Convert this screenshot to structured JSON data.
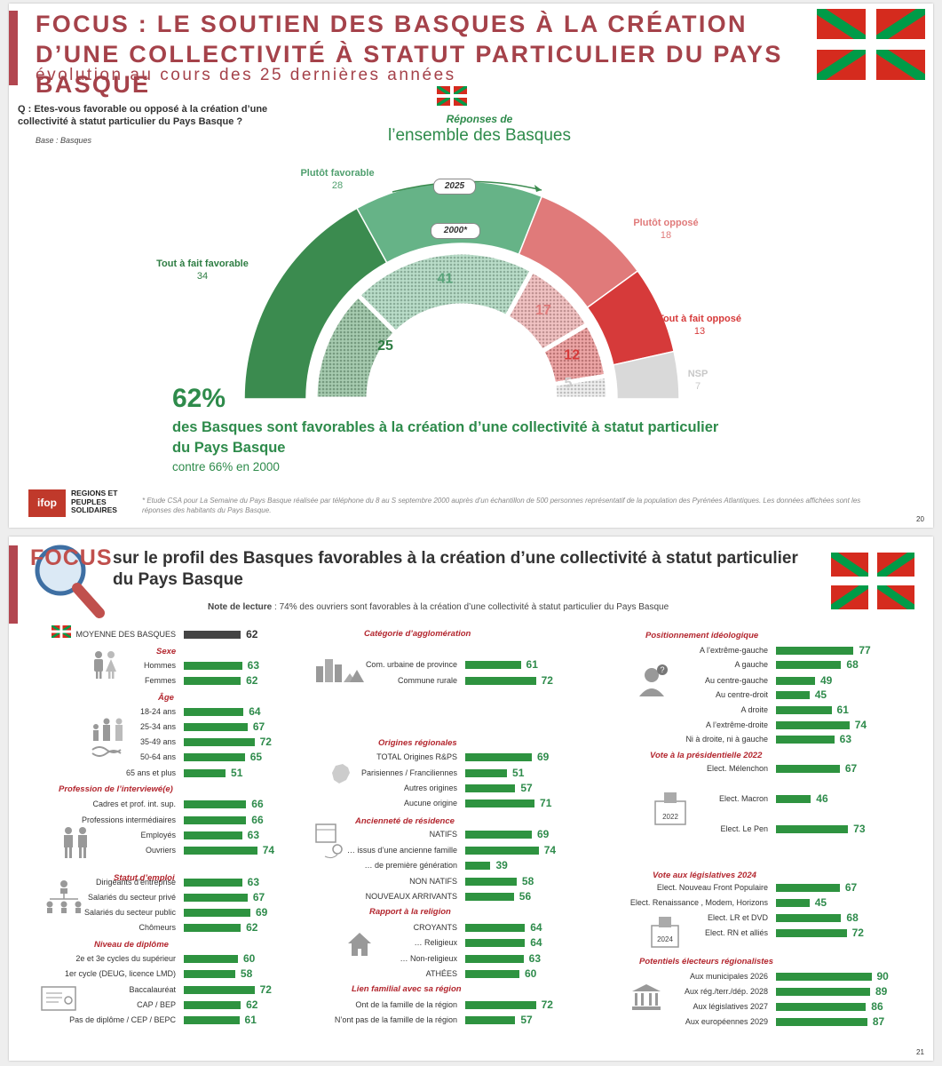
{
  "slide1": {
    "title": "FOCUS : LE SOUTIEN DES BASQUES À LA CRÉATION D’UNE COLLECTIVITÉ À STATUT PARTICULIER DU PAYS BASQUE",
    "subtitle": "évolution au cours des 25 dernières années",
    "question": "Q : Etes-vous favorable ou opposé à la création d’une collectivité à statut particulier du Pays Basque ?",
    "base": "Base : Basques",
    "responses_label": "Réponses de",
    "responses_title": "l’ensemble des Basques",
    "year_outer": "2025",
    "year_inner": "2000*",
    "headline_value": "62%",
    "headline_text": "des Basques sont favorables à la création d’une collectivité à statut particulier du Pays Basque",
    "headline_compare": "contre 66% en 2000",
    "footnote": "* Etude CSA pour La Semaine du Pays Basque réalisée par téléphone du 8 au S septembre 2000 auprès d’un échantillon de 500 personnes représentatif de la population des Pyrénées Atlantiques. Les données affichées sont les réponses des habitants du Pays Basque.",
    "logo_ifop": "ifop",
    "logo_rps": "REGIONS ET PEUPLES SOLIDAIRES",
    "page": "20"
  },
  "chart_data": [
    {
      "type": "pie",
      "title": "l’ensemble des Basques",
      "series": [
        {
          "name": "2025",
          "categories": [
            "Tout à fait favorable",
            "Plutôt favorable",
            "Plutôt opposé",
            "Tout à fait opposé",
            "NSP"
          ],
          "values": [
            34,
            28,
            18,
            13,
            7
          ],
          "colors": [
            "#3b8b4f",
            "#66b387",
            "#e07a7a",
            "#d63a3a",
            "#d9d9d9"
          ]
        },
        {
          "name": "2000*",
          "categories": [
            "Tout à fait favorable",
            "Plutôt favorable",
            "Plutôt opposé",
            "Tout à fait opposé",
            "NSP"
          ],
          "values": [
            25,
            41,
            17,
            12,
            5
          ],
          "colors": [
            "#3b8b4f",
            "#66b387",
            "#e07a7a",
            "#d63a3a",
            "#d9d9d9"
          ]
        }
      ]
    },
    {
      "type": "bar",
      "title": "sur le profil des Basques favorables à la création d’une collectivité à statut particulier du Pays Basque",
      "groups": [
        {
          "name": "",
          "items": [
            {
              "label": "MOYENNE DES BASQUES",
              "value": 62
            }
          ]
        },
        {
          "name": "Sexe",
          "items": [
            {
              "label": "Hommes",
              "value": 63
            },
            {
              "label": "Femmes",
              "value": 62
            }
          ]
        },
        {
          "name": "Âge",
          "items": [
            {
              "label": "18-24 ans",
              "value": 64
            },
            {
              "label": "25-34 ans",
              "value": 67
            },
            {
              "label": "35-49 ans",
              "value": 72
            },
            {
              "label": "50-64 ans",
              "value": 65
            },
            {
              "label": "65 ans et plus",
              "value": 51
            }
          ]
        },
        {
          "name": "Profession de l’interviewé(e)",
          "items": [
            {
              "label": "Cadres et prof. int. sup.",
              "value": 66
            },
            {
              "label": "Professions intermédiaires",
              "value": 66
            },
            {
              "label": "Employés",
              "value": 63
            },
            {
              "label": "Ouvriers",
              "value": 74
            }
          ]
        },
        {
          "name": "Statut d’emploi",
          "items": [
            {
              "label": "Dirigeants d’entreprise",
              "value": 63
            },
            {
              "label": "Salariés du secteur privé",
              "value": 67
            },
            {
              "label": "Salariés du secteur public",
              "value": 69
            },
            {
              "label": "Chômeurs",
              "value": 62
            }
          ]
        },
        {
          "name": "Niveau de diplôme",
          "items": [
            {
              "label": "2e et 3e cycles du supérieur",
              "value": 60
            },
            {
              "label": "1er cycle (DEUG, licence LMD)",
              "value": 58
            },
            {
              "label": "Baccalauréat",
              "value": 72
            },
            {
              "label": "CAP / BEP",
              "value": 62
            },
            {
              "label": "Pas de diplôme / CEP / BEPC",
              "value": 61
            }
          ]
        },
        {
          "name": "Catégorie d’agglomération",
          "items": [
            {
              "label": "Com. urbaine de province",
              "value": 61
            },
            {
              "label": "Commune rurale",
              "value": 72
            }
          ]
        },
        {
          "name": "Origines régionales",
          "items": [
            {
              "label": "TOTAL Origines R&PS",
              "value": 69
            },
            {
              "label": "Parisiennes / Franciliennes",
              "value": 51
            },
            {
              "label": "Autres origines",
              "value": 57
            },
            {
              "label": "Aucune origine",
              "value": 71
            }
          ]
        },
        {
          "name": "Ancienneté de résidence",
          "items": [
            {
              "label": "NATIFS",
              "value": 69
            },
            {
              "label": "… issus d’une ancienne famille",
              "value": 74
            },
            {
              "label": "… de première génération",
              "value": 39
            },
            {
              "label": "NON NATIFS",
              "value": 58
            },
            {
              "label": "NOUVEAUX ARRIVANTS",
              "value": 56
            }
          ]
        },
        {
          "name": "Rapport à la religion",
          "items": [
            {
              "label": "CROYANTS",
              "value": 64
            },
            {
              "label": "… Religieux",
              "value": 64
            },
            {
              "label": "… Non-religieux",
              "value": 63
            },
            {
              "label": "ATHÉES",
              "value": 60
            }
          ]
        },
        {
          "name": "Lien familial avec sa région",
          "items": [
            {
              "label": "Ont de la famille de la région",
              "value": 72
            },
            {
              "label": "N’ont pas de la famille de la région",
              "value": 57
            }
          ]
        },
        {
          "name": "Positionnement idéologique",
          "items": [
            {
              "label": "A l’extrême-gauche",
              "value": 77
            },
            {
              "label": "A gauche",
              "value": 68
            },
            {
              "label": "Au centre-gauche",
              "value": 49
            },
            {
              "label": "Au centre-droit",
              "value": 45
            },
            {
              "label": "A droite",
              "value": 61
            },
            {
              "label": "A l’extrême-droite",
              "value": 74
            },
            {
              "label": "Ni à droite, ni à gauche",
              "value": 63
            }
          ]
        },
        {
          "name": "Vote à la présidentielle 2022",
          "items": [
            {
              "label": "Elect. Mélenchon",
              "value": 67
            },
            {
              "label": "Elect. Macron",
              "value": 46
            },
            {
              "label": "Elect. Le Pen",
              "value": 73
            }
          ]
        },
        {
          "name": "Vote aux législatives 2024",
          "items": [
            {
              "label": "Elect. Nouveau Front Populaire",
              "value": 67
            },
            {
              "label": "Elect. Renaissance , Modem, Horizons",
              "value": 45
            },
            {
              "label": "Elect. LR et DVD",
              "value": 68
            },
            {
              "label": "Elect. RN et alliés",
              "value": 72
            }
          ]
        },
        {
          "name": "Potentiels électeurs régionalistes",
          "items": [
            {
              "label": "Aux municipales 2026",
              "value": 90
            },
            {
              "label": "Aux rég./terr./dép. 2028",
              "value": 89
            },
            {
              "label": "Aux législatives 2027",
              "value": 86
            },
            {
              "label": "Aux européennes 2029",
              "value": 87
            }
          ]
        }
      ]
    }
  ],
  "slide2": {
    "focus_word": "FOCUS",
    "title": "sur le profil des Basques favorables à la création d’une collectivité à statut particulier du Pays Basque",
    "note_label": "Note de lecture",
    "note_text": " : 74% des ouvriers sont favorables à la création d’une collectivité à statut particulier du Pays Basque",
    "icon_year_2022": "2022",
    "icon_year_2024": "2024",
    "page": "21"
  },
  "colors": {
    "green": "#2e9340",
    "dark_bar": "#444444",
    "title_red": "#a5424a",
    "section_red": "#b3262e"
  }
}
